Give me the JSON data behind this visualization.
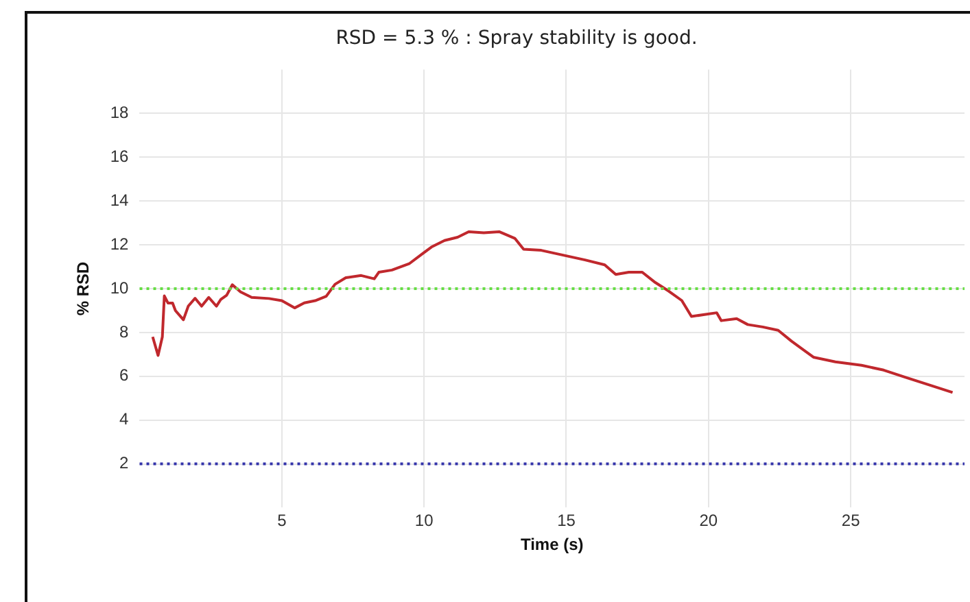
{
  "chart_data": {
    "type": "line",
    "title": "RSD = 5.3 % : Spray stability is good.",
    "xlabel": "Time (s)",
    "ylabel": "% RSD",
    "x": [
      0.46,
      0.65,
      0.8,
      0.87,
      1.0,
      1.16,
      1.26,
      1.54,
      1.71,
      1.95,
      2.18,
      2.43,
      2.7,
      2.85,
      3.06,
      3.26,
      3.55,
      3.94,
      4.55,
      5.0,
      5.45,
      5.79,
      6.17,
      6.56,
      6.87,
      7.25,
      7.79,
      8.25,
      8.41,
      8.87,
      9.49,
      9.95,
      10.26,
      10.72,
      11.18,
      11.57,
      12.1,
      12.64,
      13.19,
      13.5,
      14.12,
      14.89,
      15.66,
      16.35,
      16.74,
      17.2,
      17.67,
      18.13,
      18.6,
      19.06,
      19.4,
      20.29,
      20.45,
      20.99,
      21.38,
      21.91,
      22.45,
      22.92,
      23.69,
      24.46,
      25.38,
      26.16,
      26.93,
      27.7,
      28.58
    ],
    "series": [
      {
        "color": "#c0282d",
        "values": [
          7.8,
          6.95,
          7.8,
          9.67,
          9.34,
          9.34,
          9.0,
          8.58,
          9.2,
          9.56,
          9.2,
          9.6,
          9.2,
          9.5,
          9.7,
          10.18,
          9.85,
          9.6,
          9.55,
          9.45,
          9.12,
          9.35,
          9.45,
          9.65,
          10.2,
          10.5,
          10.6,
          10.45,
          10.75,
          10.85,
          11.15,
          11.6,
          11.9,
          12.2,
          12.35,
          12.6,
          12.55,
          12.6,
          12.3,
          11.8,
          11.75,
          11.53,
          11.31,
          11.09,
          10.65,
          10.75,
          10.75,
          10.28,
          9.89,
          9.46,
          8.73,
          8.9,
          8.54,
          8.63,
          8.36,
          8.25,
          8.1,
          7.6,
          6.87,
          6.66,
          6.5,
          6.28,
          5.95,
          5.63,
          5.26
        ]
      }
    ],
    "xlim": [
      0,
      29
    ],
    "xticks": [
      5,
      10,
      15,
      20,
      25
    ],
    "ylim": [
      0,
      20
    ],
    "yticks": [
      2,
      4,
      6,
      8,
      10,
      12,
      14,
      16,
      18
    ],
    "ref_lines": [
      {
        "axis": "y",
        "value": 10,
        "color": "#66dd44",
        "line_style": "dotted"
      },
      {
        "axis": "y",
        "value": 2,
        "color": "#3333aa",
        "line_style": "dotted"
      }
    ],
    "grid": true,
    "legend": false,
    "marker": "none",
    "line_style": "solid"
  }
}
